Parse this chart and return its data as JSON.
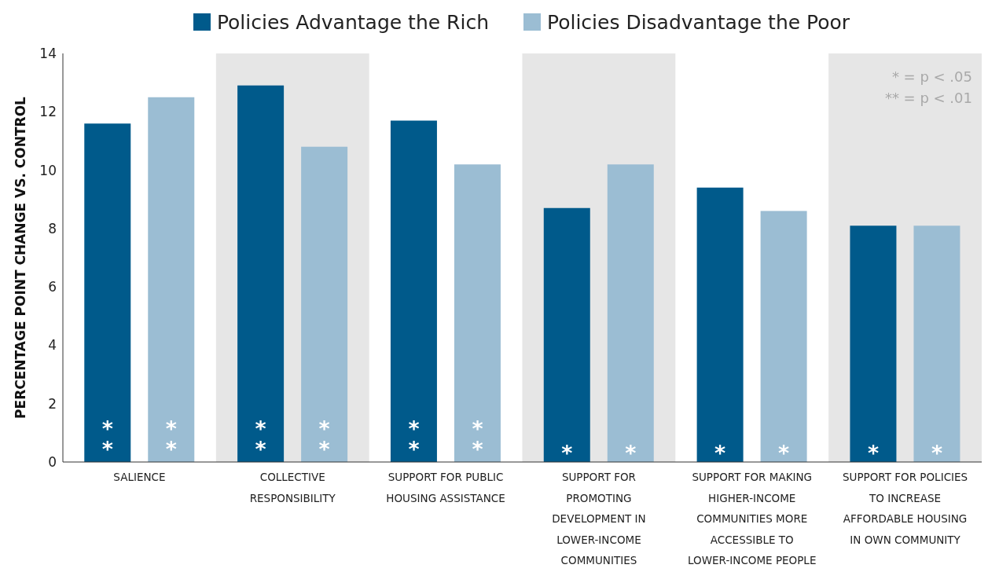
{
  "chart_data": {
    "type": "bar",
    "ylabel": "PERCENTAGE POINT CHANGE VS. CONTROL",
    "categories": [
      "SALIENCE",
      "COLLECTIVE RESPONSIBILITY",
      "SUPPORT FOR PUBLIC HOUSING ASSISTANCE",
      "SUPPORT FOR PROMOTING DEVELOPMENT IN LOWER-INCOME COMMUNITIES",
      "SUPPORT FOR MAKING HIGHER-INCOME COMMUNITIES MORE ACCESSIBLE TO LOWER-INCOME PEOPLE",
      "SUPPORT FOR POLICIES TO INCREASE AFFORDABLE HOUSING IN OWN COMMUNITY"
    ],
    "series": [
      {
        "name": "Policies Advantage the Rich",
        "color": "#005a8b",
        "values": [
          11.6,
          12.9,
          11.7,
          8.7,
          9.4,
          8.1
        ],
        "value_labels": [
          "**",
          "**",
          "**",
          "*",
          "*",
          "*"
        ]
      },
      {
        "name": "Policies Disadvantage the Poor",
        "color": "#9bbdd3",
        "values": [
          12.5,
          10.8,
          10.2,
          10.2,
          8.6,
          8.1
        ],
        "value_labels": [
          "**",
          "**",
          "**",
          "*",
          "*",
          "*"
        ]
      }
    ],
    "ylim": [
      0,
      14
    ],
    "yticks": [
      0,
      2,
      4,
      6,
      8,
      10,
      12,
      14
    ],
    "legend": "top",
    "bands": [
      {
        "axis": "x",
        "from": "COLLECTIVE RESPONSIBILITY",
        "to": "COLLECTIVE RESPONSIBILITY",
        "color": "#e6e6e6"
      },
      {
        "axis": "x",
        "from": "SUPPORT FOR PROMOTING DEVELOPMENT IN LOWER-INCOME COMMUNITIES",
        "to": "SUPPORT FOR PROMOTING DEVELOPMENT IN LOWER-INCOME COMMUNITIES",
        "color": "#e6e6e6"
      },
      {
        "axis": "x",
        "from": "SUPPORT FOR POLICIES TO INCREASE AFFORDABLE HOUSING IN OWN COMMUNITY",
        "to": "SUPPORT FOR POLICIES TO INCREASE AFFORDABLE HOUSING IN OWN COMMUNITY",
        "color": "#e6e6e6"
      }
    ],
    "annotations": [
      "* = p < .05",
      "** = p < .01"
    ]
  }
}
